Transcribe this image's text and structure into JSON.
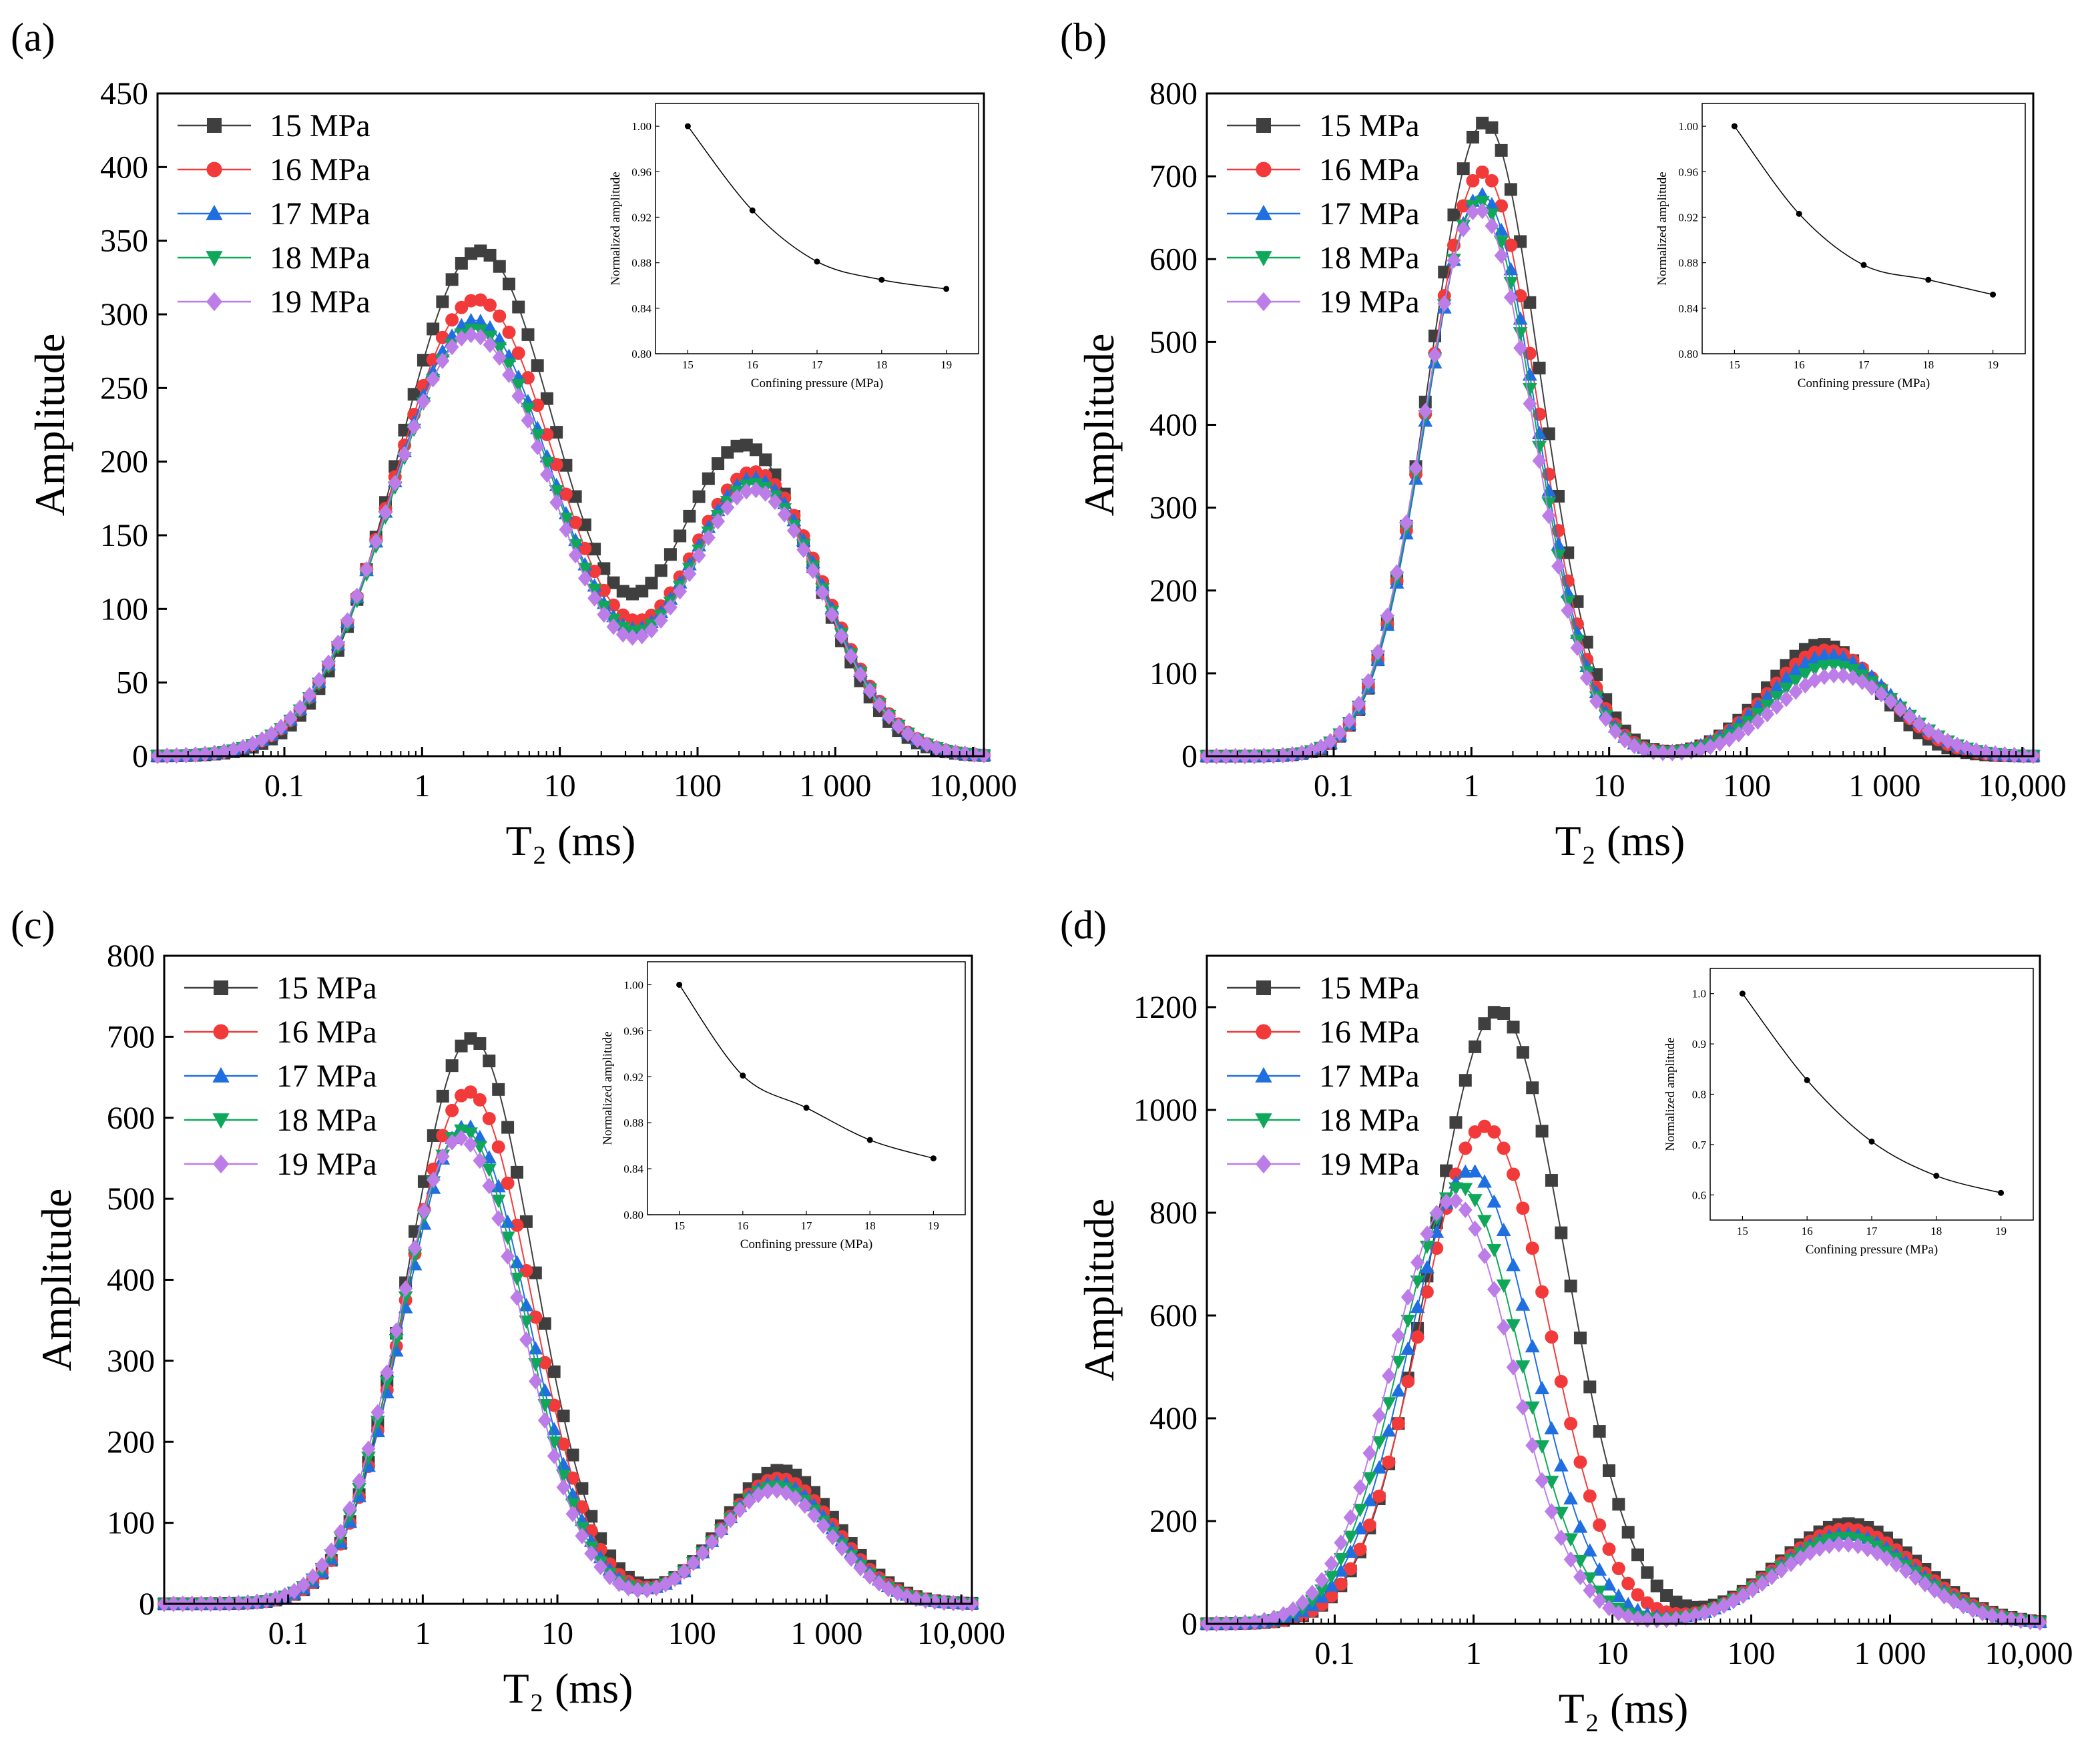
{
  "figure": {
    "panel_count": 4
  },
  "colors": {
    "15 MPa": "#3f3f3f",
    "16 MPa": "#f23a3a",
    "17 MPa": "#1f6fe0",
    "18 MPa": "#0fa85a",
    "19 MPa": "#bd7de8"
  },
  "chart_data": [
    {
      "panel_label": "(a)",
      "type": "scatter",
      "xscale": "log",
      "xlim": [
        0.012,
        12000
      ],
      "ylim": [
        0,
        450
      ],
      "yticks": [
        0,
        50,
        100,
        150,
        200,
        250,
        300,
        350,
        400,
        450
      ],
      "xticks": [
        0.1,
        1,
        10,
        100,
        1000,
        10000
      ],
      "xtick_labels": [
        "0.1",
        "1",
        "10",
        "100",
        "1 000",
        "10,000"
      ],
      "xlabel": "T₂ (ms)",
      "ylabel": "Amplitude",
      "legend": [
        "15 MPa",
        "16 MPa",
        "17 MPa",
        "18 MPa",
        "19 MPa"
      ],
      "legend_position": "top-left",
      "series_peaks": [
        {
          "name": "15 MPa",
          "peaks": [
            {
              "center": 2.6,
              "amp": 343,
              "width": 0.58
            },
            {
              "center": 220,
              "amp": 210,
              "width": 0.5
            }
          ]
        },
        {
          "name": "16 MPa",
          "peaks": [
            {
              "center": 2.5,
              "amp": 310,
              "width": 0.6
            },
            {
              "center": 260,
              "amp": 192,
              "width": 0.5
            }
          ]
        },
        {
          "name": "17 MPa",
          "peaks": [
            {
              "center": 2.4,
              "amp": 296,
              "width": 0.6
            },
            {
              "center": 260,
              "amp": 188,
              "width": 0.5
            }
          ]
        },
        {
          "name": "18 MPa",
          "peaks": [
            {
              "center": 2.4,
              "amp": 290,
              "width": 0.6
            },
            {
              "center": 260,
              "amp": 184,
              "width": 0.5
            }
          ]
        },
        {
          "name": "19 MPa",
          "peaks": [
            {
              "center": 2.3,
              "amp": 286,
              "width": 0.6
            },
            {
              "center": 260,
              "amp": 180,
              "width": 0.5
            }
          ]
        }
      ],
      "inset": {
        "type": "line",
        "x": [
          15,
          16,
          17,
          18,
          19
        ],
        "y": [
          1.0,
          0.926,
          0.881,
          0.865,
          0.857
        ],
        "xlim": [
          14.5,
          19.5
        ],
        "ylim": [
          0.8,
          1.02
        ],
        "yticks": [
          0.8,
          0.84,
          0.88,
          0.92,
          0.96,
          1.0
        ],
        "ytick_labels": [
          "0.80",
          "0.84",
          "0.88",
          "0.92",
          "0.96",
          "1.00"
        ],
        "xticks": [
          15,
          16,
          17,
          18,
          19
        ],
        "xlabel": "Confining pressure (MPa)",
        "ylabel": "Normalized amplitude"
      }
    },
    {
      "panel_label": "(b)",
      "type": "scatter",
      "xscale": "log",
      "xlim": [
        0.012,
        12000
      ],
      "ylim": [
        0,
        800
      ],
      "yticks": [
        0,
        100,
        200,
        300,
        400,
        500,
        600,
        700,
        800
      ],
      "xticks": [
        0.1,
        1,
        10,
        100,
        1000,
        10000
      ],
      "xtick_labels": [
        "0.1",
        "1",
        "10",
        "100",
        "1 000",
        "10,000"
      ],
      "xlabel": "T₂ (ms)",
      "ylabel": "Amplitude",
      "legend": [
        "15 MPa",
        "16 MPa",
        "17 MPa",
        "18 MPa",
        "19 MPa"
      ],
      "legend_position": "top-left",
      "series_peaks": [
        {
          "name": "15 MPa",
          "peaks": [
            {
              "center": 1.25,
              "amp": 765,
              "width": 0.4
            },
            {
              "center": 350,
              "amp": 135,
              "width": 0.4
            }
          ]
        },
        {
          "name": "16 MPa",
          "peaks": [
            {
              "center": 1.2,
              "amp": 705,
              "width": 0.4
            },
            {
              "center": 380,
              "amp": 128,
              "width": 0.42
            }
          ]
        },
        {
          "name": "17 MPa",
          "peaks": [
            {
              "center": 1.18,
              "amp": 678,
              "width": 0.4
            },
            {
              "center": 400,
              "amp": 122,
              "width": 0.44
            }
          ]
        },
        {
          "name": "18 MPa",
          "peaks": [
            {
              "center": 1.15,
              "amp": 670,
              "width": 0.4
            },
            {
              "center": 420,
              "amp": 110,
              "width": 0.44
            }
          ]
        },
        {
          "name": "19 MPa",
          "peaks": [
            {
              "center": 1.12,
              "amp": 660,
              "width": 0.4
            },
            {
              "center": 450,
              "amp": 98,
              "width": 0.44
            }
          ]
        }
      ],
      "inset": {
        "type": "line",
        "x": [
          15,
          16,
          17,
          18,
          19
        ],
        "y": [
          1.0,
          0.923,
          0.878,
          0.865,
          0.852
        ],
        "xlim": [
          14.5,
          19.5
        ],
        "ylim": [
          0.8,
          1.02
        ],
        "yticks": [
          0.8,
          0.84,
          0.88,
          0.92,
          0.96,
          1.0
        ],
        "ytick_labels": [
          "0.80",
          "0.84",
          "0.88",
          "0.92",
          "0.96",
          "1.00"
        ],
        "xticks": [
          15,
          16,
          17,
          18,
          19
        ],
        "xlabel": "Confining pressure (MPa)",
        "ylabel": "Normalized amplitude"
      }
    },
    {
      "panel_label": "(c)",
      "type": "scatter",
      "xscale": "log",
      "xlim": [
        0.012,
        12000
      ],
      "ylim": [
        0,
        800
      ],
      "yticks": [
        0,
        100,
        200,
        300,
        400,
        500,
        600,
        700,
        800
      ],
      "xticks": [
        0.1,
        1,
        10,
        100,
        1000,
        10000
      ],
      "xtick_labels": [
        "0.1",
        "1",
        "10",
        "100",
        "1 000",
        "10,000"
      ],
      "xlabel": "T₂ (ms)",
      "ylabel": "Amplitude",
      "legend": [
        "15 MPa",
        "16 MPa",
        "17 MPa",
        "18 MPa",
        "19 MPa"
      ],
      "legend_position": "top-left",
      "series_peaks": [
        {
          "name": "15 MPa",
          "peaks": [
            {
              "center": 2.3,
              "amp": 698,
              "width": 0.46
            },
            {
              "center": 450,
              "amp": 165,
              "width": 0.42
            }
          ]
        },
        {
          "name": "16 MPa",
          "peaks": [
            {
              "center": 2.2,
              "amp": 632,
              "width": 0.46
            },
            {
              "center": 440,
              "amp": 155,
              "width": 0.42
            }
          ]
        },
        {
          "name": "17 MPa",
          "peaks": [
            {
              "center": 2.1,
              "amp": 590,
              "width": 0.46
            },
            {
              "center": 430,
              "amp": 150,
              "width": 0.42
            }
          ]
        },
        {
          "name": "18 MPa",
          "peaks": [
            {
              "center": 2.0,
              "amp": 585,
              "width": 0.46
            },
            {
              "center": 420,
              "amp": 145,
              "width": 0.42
            }
          ]
        },
        {
          "name": "19 MPa",
          "peaks": [
            {
              "center": 1.9,
              "amp": 575,
              "width": 0.46
            },
            {
              "center": 410,
              "amp": 140,
              "width": 0.42
            }
          ]
        }
      ],
      "inset": {
        "type": "line",
        "x": [
          15,
          16,
          17,
          18,
          19
        ],
        "y": [
          1.0,
          0.921,
          0.893,
          0.865,
          0.849
        ],
        "xlim": [
          14.5,
          19.5
        ],
        "ylim": [
          0.8,
          1.02
        ],
        "yticks": [
          0.8,
          0.84,
          0.88,
          0.92,
          0.96,
          1.0
        ],
        "ytick_labels": [
          "0.80",
          "0.84",
          "0.88",
          "0.92",
          "0.96",
          "1.00"
        ],
        "xticks": [
          15,
          16,
          17,
          18,
          19
        ],
        "xlabel": "Confining pressure (MPa)",
        "ylabel": "Normalized amplitude"
      }
    },
    {
      "panel_label": "(d)",
      "type": "scatter",
      "xscale": "log",
      "xlim": [
        0.012,
        12000
      ],
      "ylim": [
        0,
        1300
      ],
      "yticks": [
        0,
        200,
        400,
        600,
        800,
        1000,
        1200
      ],
      "xticks": [
        0.1,
        1,
        10,
        100,
        1000,
        10000
      ],
      "xtick_labels": [
        "0.1",
        "1",
        "10",
        "100",
        "1 000",
        "10,000"
      ],
      "xlabel": "T₂ (ms)",
      "ylabel": "Amplitude",
      "legend": [
        "15 MPa",
        "16 MPa",
        "17 MPa",
        "18 MPa",
        "19 MPa"
      ],
      "legend_position": "top-left",
      "series_peaks": [
        {
          "name": "15 MPa",
          "peaks": [
            {
              "center": 1.5,
              "amp": 1192,
              "width": 0.48
            },
            {
              "center": 500,
              "amp": 195,
              "width": 0.5
            }
          ]
        },
        {
          "name": "16 MPa",
          "peaks": [
            {
              "center": 1.2,
              "amp": 968,
              "width": 0.46
            },
            {
              "center": 490,
              "amp": 185,
              "width": 0.5
            }
          ]
        },
        {
          "name": "17 MPa",
          "peaks": [
            {
              "center": 0.95,
              "amp": 882,
              "width": 0.45
            },
            {
              "center": 480,
              "amp": 175,
              "width": 0.5
            }
          ]
        },
        {
          "name": "18 MPa",
          "peaks": [
            {
              "center": 0.8,
              "amp": 850,
              "width": 0.44
            },
            {
              "center": 470,
              "amp": 168,
              "width": 0.5
            }
          ]
        },
        {
          "name": "19 MPa",
          "peaks": [
            {
              "center": 0.7,
              "amp": 825,
              "width": 0.44
            },
            {
              "center": 460,
              "amp": 155,
              "width": 0.5
            }
          ]
        }
      ],
      "inset": {
        "type": "line",
        "x": [
          15,
          16,
          17,
          18,
          19
        ],
        "y": [
          1.0,
          0.828,
          0.706,
          0.638,
          0.604
        ],
        "xlim": [
          14.5,
          19.5
        ],
        "ylim": [
          0.55,
          1.05
        ],
        "yticks": [
          0.6,
          0.7,
          0.8,
          0.9,
          1.0
        ],
        "ytick_labels": [
          "0.6",
          "0.7",
          "0.8",
          "0.9",
          "1.0"
        ],
        "xticks": [
          15,
          16,
          17,
          18,
          19
        ],
        "xlabel": "Confining pressure (MPa)",
        "ylabel": "Normalized amplitude"
      }
    }
  ]
}
